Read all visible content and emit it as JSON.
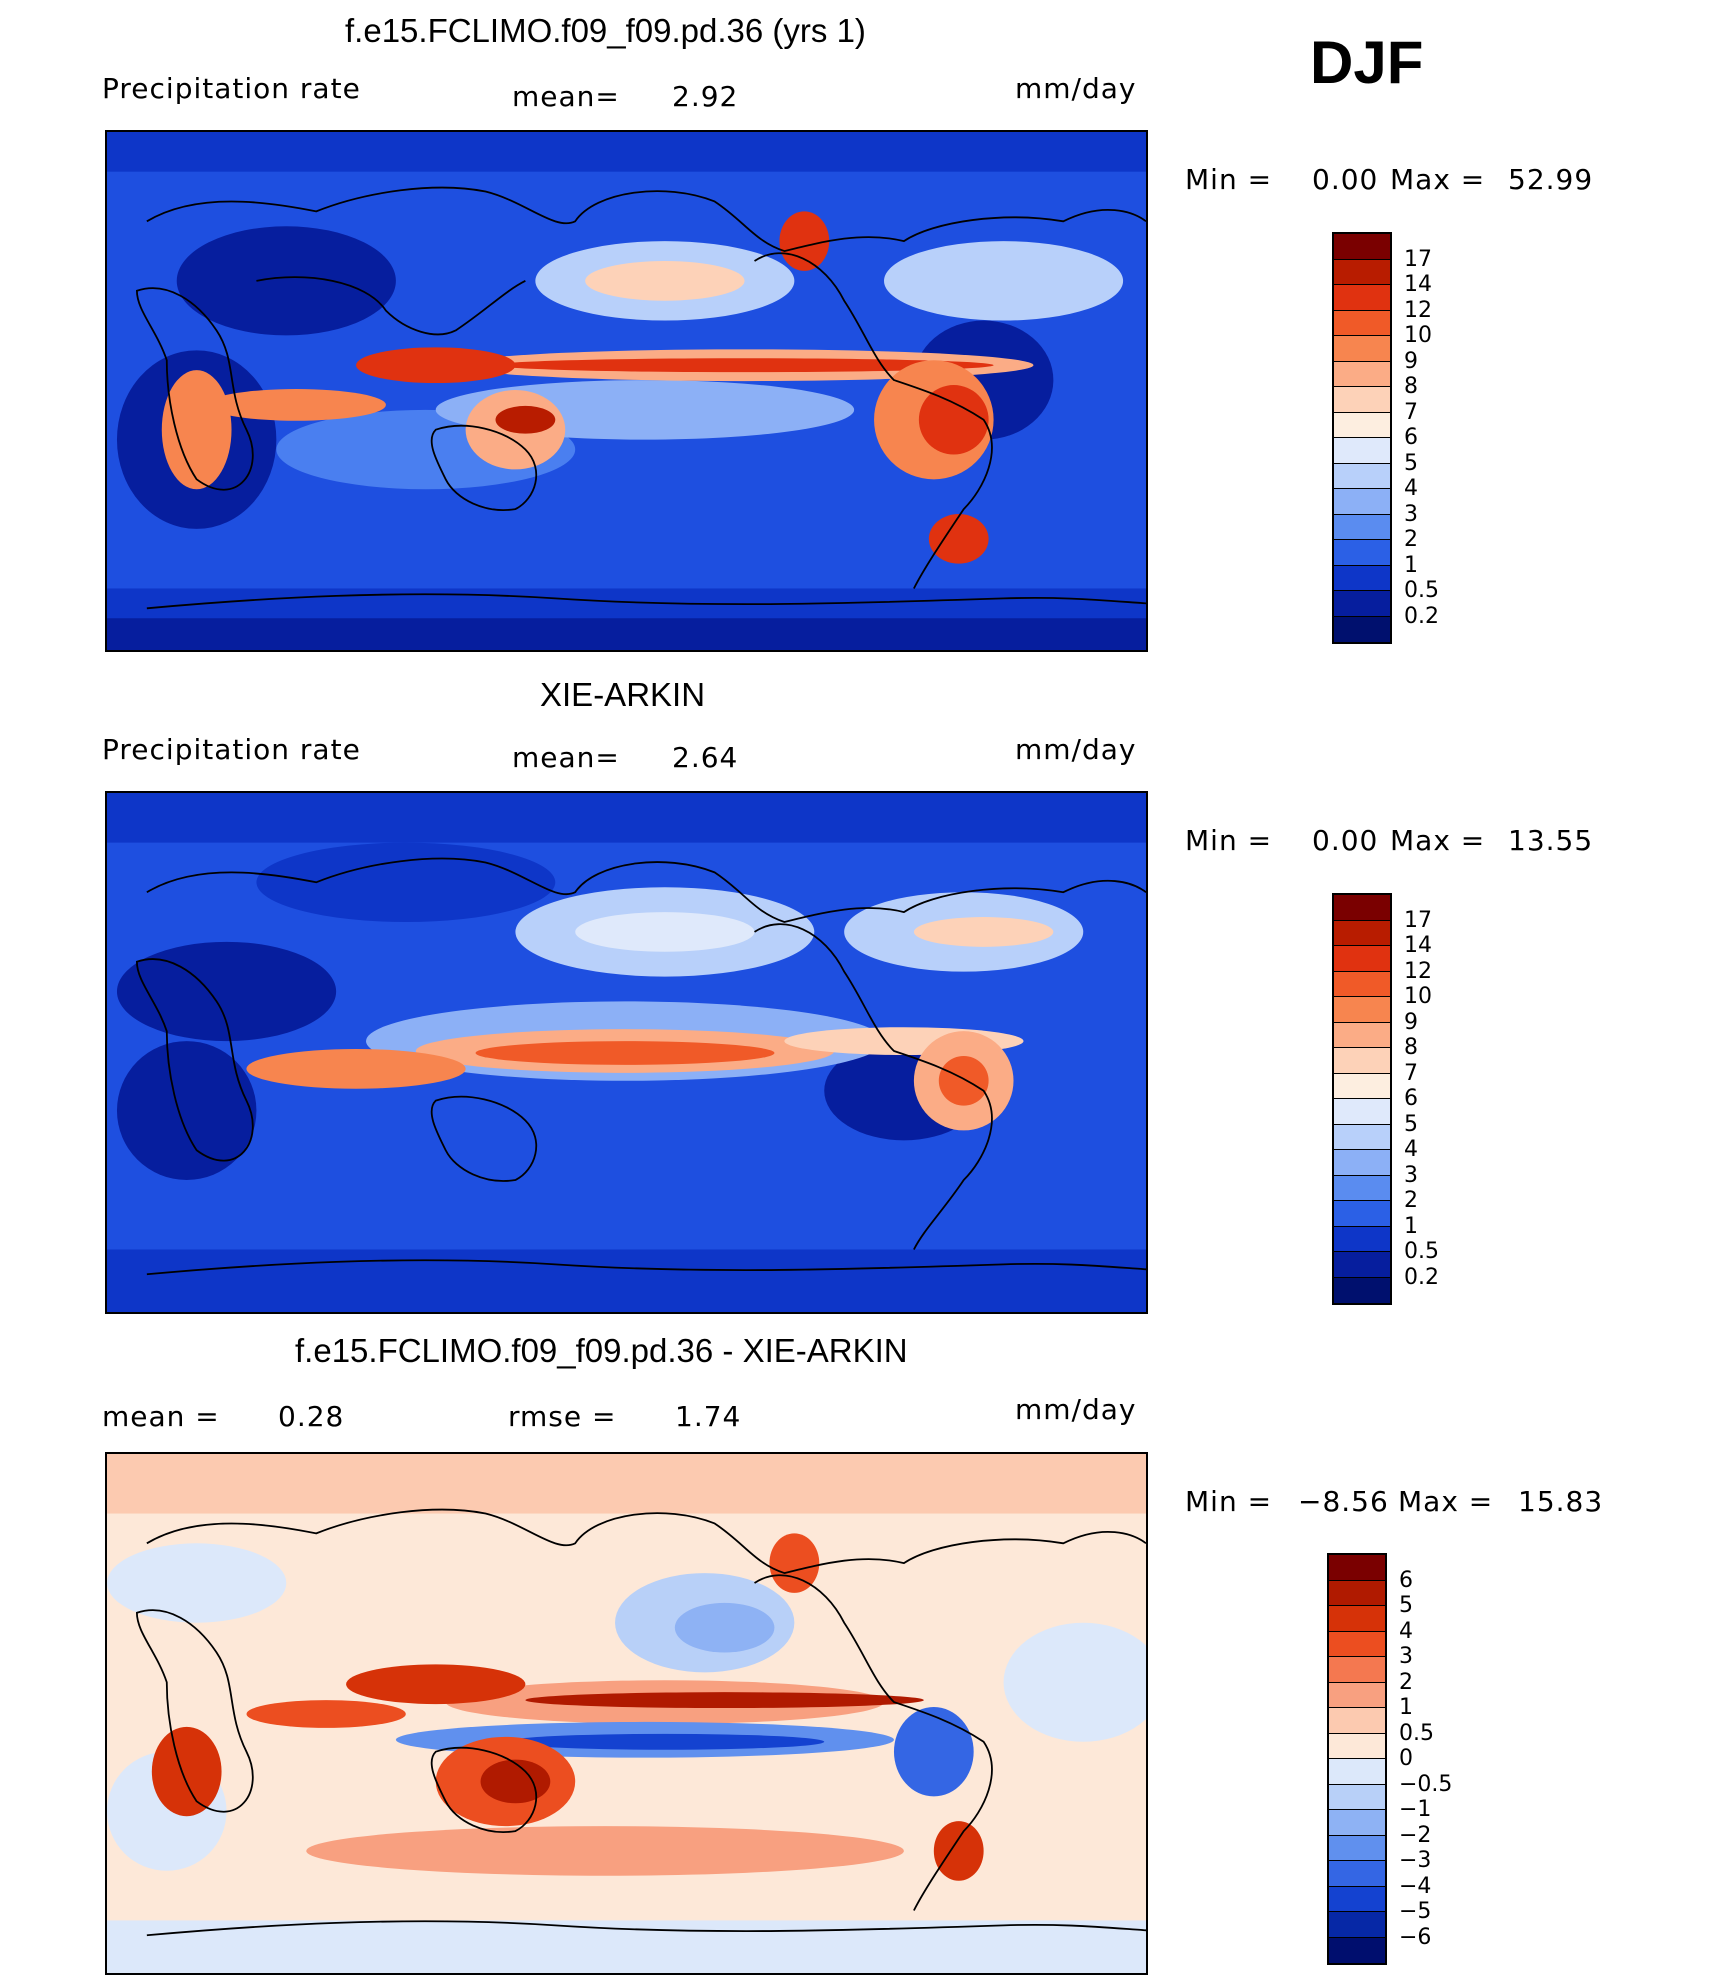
{
  "season": "DJF",
  "panels": [
    {
      "title": "f.e15.FCLIMO.f09_f09.pd.36 (yrs 1)",
      "left_label": "Precipitation  rate",
      "center_label": "mean=",
      "center_value": "2.92",
      "right_label": "mm/day",
      "min_label": "Min  =",
      "min_value": "0.00",
      "max_label": "Max  =",
      "max_value": "52.99",
      "colorbar": {
        "ticks": [
          "17",
          "14",
          "12",
          "10",
          "9",
          "8",
          "7",
          "6",
          "5",
          "4",
          "3",
          "2",
          "1",
          "0.5",
          "0.2"
        ],
        "colors": [
          "#7a0000",
          "#b81c00",
          "#e03210",
          "#f05a28",
          "#f7854f",
          "#fbac86",
          "#fdd2b8",
          "#fdeee0",
          "#dfe9fb",
          "#b8d0fa",
          "#8cb0f6",
          "#5a8cf0",
          "#2b60e6",
          "#0e36c8",
          "#061e9e",
          "#00106e"
        ]
      }
    },
    {
      "title": "XIE-ARKIN",
      "left_label": "Precipitation  rate",
      "center_label": "mean=",
      "center_value": "2.64",
      "right_label": "mm/day",
      "min_label": "Min  =",
      "min_value": "0.00",
      "max_label": "Max  =",
      "max_value": "13.55",
      "colorbar": {
        "ticks": [
          "17",
          "14",
          "12",
          "10",
          "9",
          "8",
          "7",
          "6",
          "5",
          "4",
          "3",
          "2",
          "1",
          "0.5",
          "0.2"
        ],
        "colors": [
          "#7a0000",
          "#b81c00",
          "#e03210",
          "#f05a28",
          "#f7854f",
          "#fbac86",
          "#fdd2b8",
          "#fdeee0",
          "#dfe9fb",
          "#b8d0fa",
          "#8cb0f6",
          "#5a8cf0",
          "#2b60e6",
          "#0e36c8",
          "#061e9e",
          "#00106e"
        ]
      }
    },
    {
      "title": "f.e15.FCLIMO.f09_f09.pd.36 - XIE-ARKIN",
      "left_label": "mean  =",
      "left_value": "0.28",
      "center_label": "rmse  =",
      "center_value": "1.74",
      "right_label": "mm/day",
      "min_label": "Min  =",
      "min_value": "−8.56",
      "max_label": "Max  =",
      "max_value": "15.83",
      "colorbar": {
        "ticks": [
          "6",
          "5",
          "4",
          "3",
          "2",
          "1",
          "0.5",
          "0",
          "−0.5",
          "−1",
          "−2",
          "−3",
          "−4",
          "−5",
          "−6"
        ],
        "colors": [
          "#7a0000",
          "#b01a00",
          "#d63208",
          "#ec4e20",
          "#f47850",
          "#f8a080",
          "#fccab0",
          "#fde8d8",
          "#dce8fa",
          "#b8d0f8",
          "#8eb2f4",
          "#6090ee",
          "#3466e4",
          "#1442d0",
          "#0628a6",
          "#000e6e"
        ]
      }
    }
  ]
}
